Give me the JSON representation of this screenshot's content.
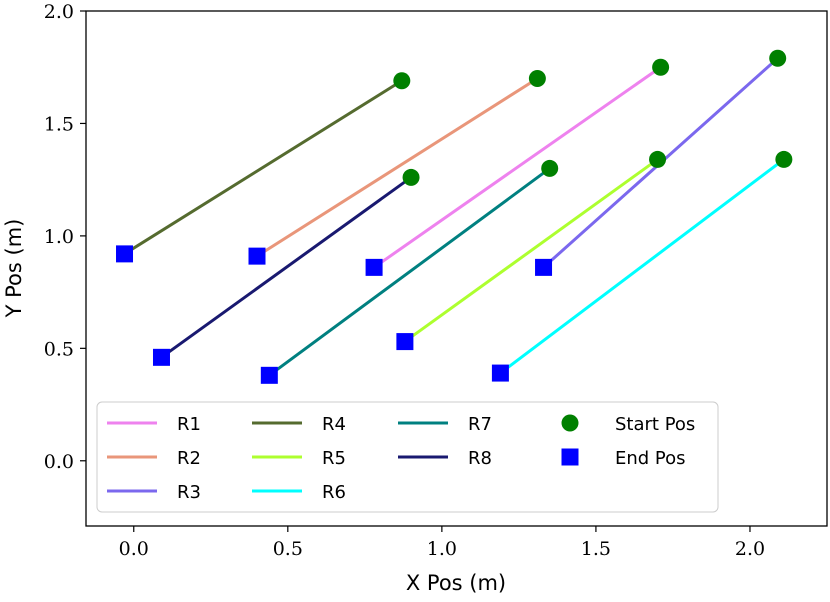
{
  "chart_data": {
    "type": "line",
    "xlabel": "X Pos (m)",
    "ylabel": "Y Pos (m)",
    "xlim": [
      -0.155,
      2.25
    ],
    "ylim": [
      -0.29,
      2.0
    ],
    "xticks": [
      0.0,
      0.5,
      1.0,
      1.5,
      2.0
    ],
    "xtick_labels": [
      "0.0",
      "0.5",
      "1.0",
      "1.5",
      "2.0"
    ],
    "yticks": [
      0.0,
      0.5,
      1.0,
      1.5,
      2.0
    ],
    "ytick_labels": [
      "0.0",
      "0.5",
      "1.0",
      "1.5",
      "2.0"
    ],
    "grid": false,
    "legend_position": "lower-left",
    "series": [
      {
        "name": "R1",
        "color": "#ee82ee",
        "start": [
          1.71,
          1.75
        ],
        "end": [
          0.78,
          0.86
        ]
      },
      {
        "name": "R2",
        "color": "#e9967a",
        "start": [
          1.31,
          1.7
        ],
        "end": [
          0.4,
          0.91
        ]
      },
      {
        "name": "R3",
        "color": "#7b68ee",
        "start": [
          2.09,
          1.79
        ],
        "end": [
          1.33,
          0.86
        ]
      },
      {
        "name": "R4",
        "color": "#556b2f",
        "start": [
          0.87,
          1.69
        ],
        "end": [
          -0.03,
          0.92
        ]
      },
      {
        "name": "R5",
        "color": "#adff2f",
        "start": [
          1.7,
          1.34
        ],
        "end": [
          0.88,
          0.53
        ]
      },
      {
        "name": "R6",
        "color": "#00ffff",
        "start": [
          2.11,
          1.34
        ],
        "end": [
          1.19,
          0.39
        ]
      },
      {
        "name": "R7",
        "color": "#008080",
        "start": [
          1.35,
          1.3
        ],
        "end": [
          0.44,
          0.38
        ]
      },
      {
        "name": "R8",
        "color": "#191970",
        "start": [
          0.9,
          1.26
        ],
        "end": [
          0.09,
          0.46
        ]
      }
    ],
    "markers": {
      "start": {
        "label": "Start Pos",
        "color": "#008000"
      },
      "end": {
        "label": "End Pos",
        "color": "#0000ff"
      }
    }
  }
}
